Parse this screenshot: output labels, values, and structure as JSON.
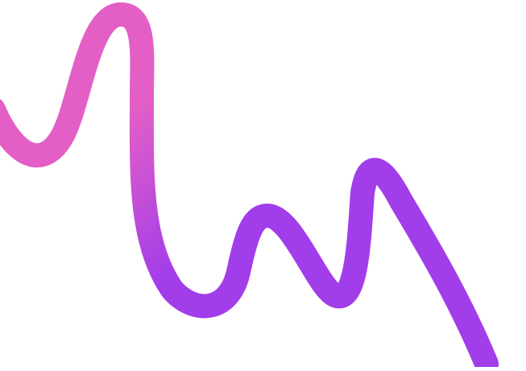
{
  "graphic": {
    "shape": "squiggle-line-icon",
    "colors": {
      "background": "#ffffff",
      "stroke_start": "#e35fc6",
      "stroke_end": "#a23dea"
    }
  }
}
